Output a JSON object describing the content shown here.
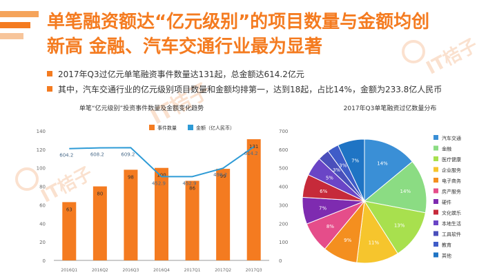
{
  "header": {
    "title_line1": "单笔融资额达“亿元级别”的项目数量与金额均创",
    "title_line2": "新高  金融、汽车交通行业最为显著"
  },
  "bullets": [
    "2017年Q3过亿元单笔融资事件数量达131起，总金额达614.2亿元",
    "其中，汽车交通行业的亿元级别项目数量和金额均排第一，达到18起，占比14%，金额为233.8亿人民币"
  ],
  "watermark": {
    "text": "IT桔子"
  },
  "colors": {
    "accent": "#f47b20",
    "bar": "#f47b20",
    "line": "#2e9bd6"
  },
  "chart_data": [
    {
      "type": "bar",
      "title": "单笔“亿元级别”投资事件数量及金额变化趋势",
      "categories": [
        "2016Q1",
        "2016Q2",
        "2016Q3",
        "2016Q4",
        "2017Q1",
        "2017Q2",
        "2017Q3"
      ],
      "series": [
        {
          "name": "事件数量",
          "type": "bar",
          "axis": "left",
          "values": [
            63,
            80,
            98,
            100,
            86,
            99,
            131
          ]
        },
        {
          "name": "金额（亿人民币）",
          "type": "line",
          "axis": "right",
          "values": [
            604.2,
            608.2,
            609.2,
            452.9,
            452.9,
            498.2,
            614.2
          ]
        }
      ],
      "y_left": {
        "ylim": [
          0,
          140
        ],
        "ticks": [
          0,
          20,
          40,
          60,
          80,
          100,
          120,
          140
        ]
      },
      "y_right": {
        "ylim": [
          0,
          700
        ],
        "ticks": [
          0,
          100,
          200,
          300,
          400,
          500,
          600,
          700
        ]
      },
      "value_labels_bar": [
        "63",
        "80",
        "98",
        "100",
        "86",
        "99",
        "131"
      ],
      "value_labels_line": [
        "604.2",
        "608.2",
        "609.2",
        "452.9",
        "452.9",
        "498.2",
        "614.2"
      ],
      "legend_placement": "top-center",
      "grid": false
    },
    {
      "type": "pie",
      "title": "2017年Q3单笔融资过亿数量分布",
      "categories": [
        "汽车交通",
        "金融",
        "医疗健康",
        "企业服务",
        "电子商务",
        "房产服务",
        "硬件",
        "文化娱乐",
        "本地生活",
        "工具软件",
        "教育",
        "其他"
      ],
      "values": [
        14,
        14,
        13,
        11,
        9,
        8,
        7,
        6,
        5,
        3,
        3,
        7
      ],
      "slice_labels": [
        "14%",
        "14%",
        "13%",
        "11%",
        "9%",
        "8%",
        "7%",
        "6%",
        "5%",
        "3%",
        "3%",
        "7%"
      ],
      "colors": [
        "#3a8fd6",
        "#8bdc83",
        "#a8e04e",
        "#f6c52d",
        "#f48f1f",
        "#e54d8a",
        "#7e2bb0",
        "#c62a3a",
        "#6a45c6",
        "#4a4fbb",
        "#3f5cc8",
        "#1f74c4"
      ],
      "legend_placement": "right"
    }
  ]
}
